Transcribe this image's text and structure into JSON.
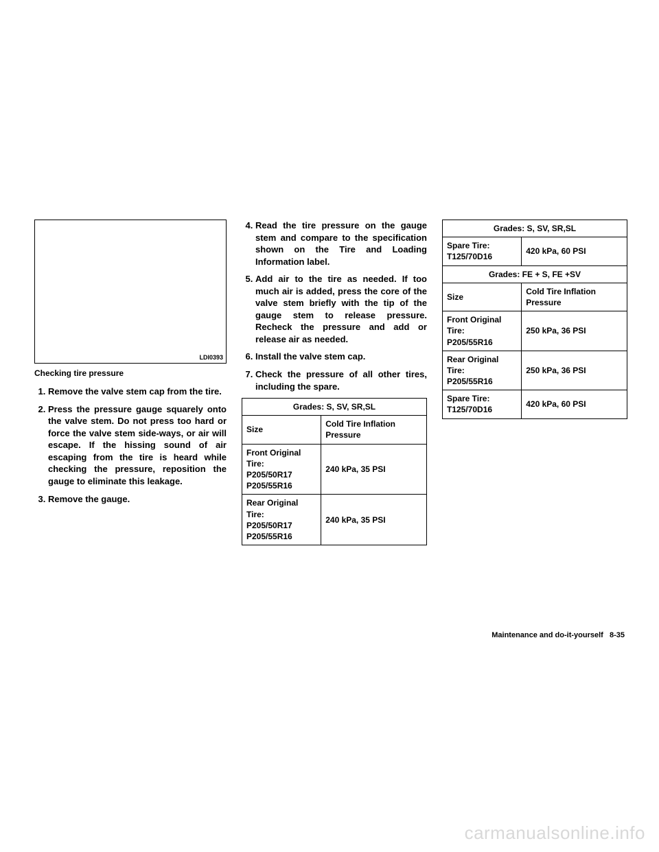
{
  "image": {
    "code": "LDI0393"
  },
  "caption": "Checking tire pressure",
  "steps_col1": [
    "Remove the valve stem cap from the tire.",
    "Press the pressure gauge squarely onto the valve stem. Do not press too hard or force the valve stem side-ways, or air will escape. If the hissing sound of air escaping from the tire is heard while checking the pressure, reposition the gauge to eliminate this leakage.",
    "Remove the gauge."
  ],
  "steps_col2": [
    "Read the tire pressure on the gauge stem and compare to the specification shown on the Tire and Loading Information label.",
    "Add air to the tire as needed. If too much air is added, press the core of the valve stem briefly with the tip of the gauge stem to release pressure. Recheck the pressure and add or release air as needed.",
    "Install the valve stem cap.",
    "Check the pressure of all other tires, including the spare."
  ],
  "table1": {
    "header": "Grades: S, SV, SR,SL",
    "size_label": "Size",
    "pressure_label": "Cold Tire Inflation Pressure",
    "rows": [
      {
        "size": "Front Original Tire:\nP205/50R17\nP205/55R16",
        "pressure": "240 kPa, 35 PSI"
      },
      {
        "size": "Rear Original Tire:\nP205/50R17\nP205/55R16",
        "pressure": "240 kPa, 35 PSI"
      }
    ]
  },
  "table2": {
    "header": "Grades: S, SV, SR,SL",
    "rows": [
      {
        "size": "Spare Tire:\nT125/70D16",
        "pressure": "420 kPa, 60 PSI"
      }
    ]
  },
  "table3": {
    "header": "Grades: FE + S, FE +SV",
    "size_label": "Size",
    "pressure_label": "Cold Tire Inflation Pressure",
    "rows": [
      {
        "size": "Front Original Tire:\nP205/55R16",
        "pressure": "250 kPa, 36 PSI"
      },
      {
        "size": "Rear Original Tire:\nP205/55R16",
        "pressure": "250 kPa, 36 PSI"
      },
      {
        "size": "Spare Tire:\nT125/70D16",
        "pressure": "420 kPa, 60 PSI"
      }
    ]
  },
  "footer": "Maintenance and do-it-yourself   8-35",
  "watermark": "carmanualsonline.info"
}
